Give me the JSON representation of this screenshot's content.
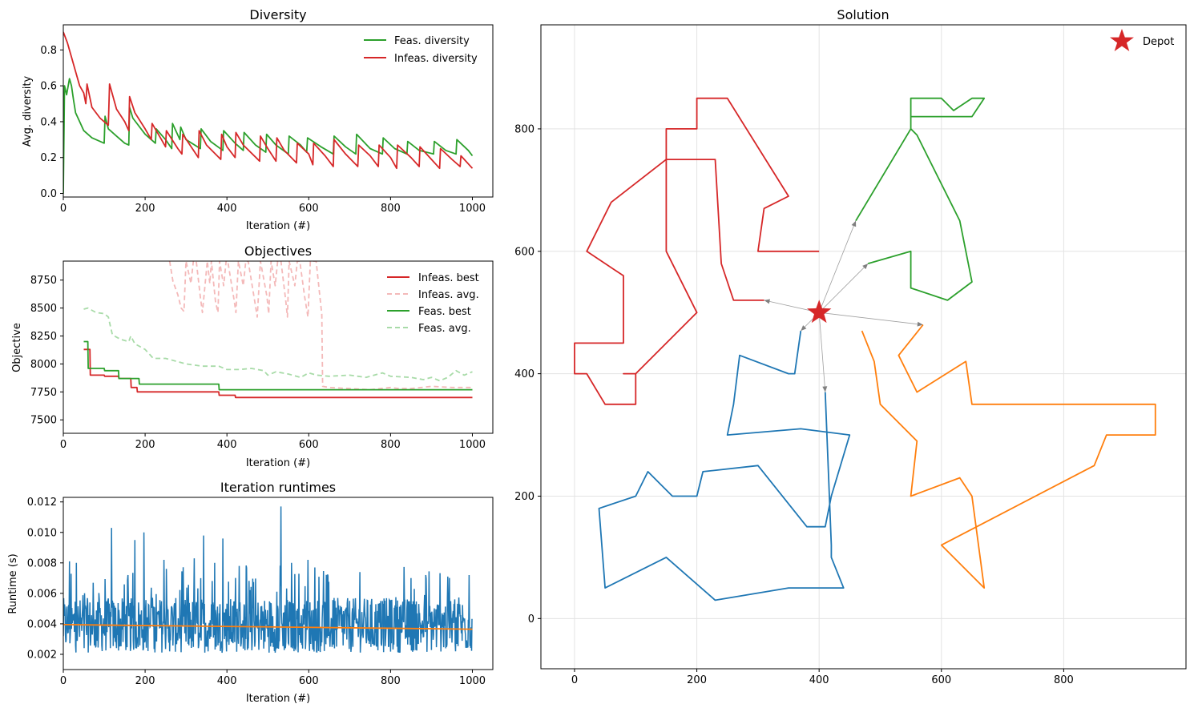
{
  "chart_data": [
    {
      "id": "diversity",
      "type": "line",
      "title": "Diversity",
      "xlabel": "Iteration (#)",
      "ylabel": "Avg. diversity",
      "xlim": [
        0,
        1050
      ],
      "ylim": [
        -0.02,
        0.94
      ],
      "xticks": [
        0,
        200,
        400,
        600,
        800,
        1000
      ],
      "yticks": [
        0.0,
        0.2,
        0.4,
        0.6,
        0.8
      ],
      "ytick_labels": [
        "0.0",
        "0.2",
        "0.4",
        "0.6",
        "0.8"
      ],
      "legend_position": "top-right",
      "series": [
        {
          "name": "Feas. diversity",
          "color": "#2ca02c",
          "x": [
            0,
            3,
            8,
            15,
            20,
            25,
            30,
            40,
            50,
            60,
            70,
            80,
            90,
            100,
            102,
            110,
            115,
            130,
            150,
            160,
            162,
            170,
            200,
            225,
            227,
            250,
            265,
            267,
            285,
            287,
            300,
            335,
            337,
            360,
            390,
            392,
            420,
            440,
            442,
            470,
            495,
            497,
            520,
            550,
            552,
            580,
            595,
            597,
            630,
            660,
            662,
            690,
            715,
            717,
            750,
            780,
            782,
            810,
            840,
            842,
            870,
            905,
            907,
            935,
            960,
            962,
            990,
            1000
          ],
          "y": [
            0.0,
            0.6,
            0.55,
            0.64,
            0.6,
            0.52,
            0.45,
            0.4,
            0.35,
            0.33,
            0.31,
            0.3,
            0.29,
            0.28,
            0.43,
            0.36,
            0.35,
            0.32,
            0.28,
            0.27,
            0.48,
            0.42,
            0.33,
            0.28,
            0.36,
            0.3,
            0.25,
            0.39,
            0.3,
            0.37,
            0.3,
            0.25,
            0.36,
            0.29,
            0.24,
            0.35,
            0.28,
            0.24,
            0.34,
            0.27,
            0.23,
            0.33,
            0.27,
            0.22,
            0.32,
            0.27,
            0.23,
            0.31,
            0.26,
            0.22,
            0.32,
            0.26,
            0.22,
            0.33,
            0.25,
            0.22,
            0.31,
            0.25,
            0.22,
            0.29,
            0.24,
            0.22,
            0.29,
            0.24,
            0.22,
            0.3,
            0.24,
            0.21
          ]
        },
        {
          "name": "Infeas. diversity",
          "color": "#d62728",
          "x": [
            0,
            10,
            20,
            30,
            40,
            50,
            55,
            58,
            70,
            90,
            110,
            113,
            130,
            150,
            160,
            162,
            175,
            200,
            215,
            217,
            240,
            250,
            252,
            280,
            290,
            292,
            330,
            332,
            350,
            385,
            387,
            400,
            420,
            422,
            440,
            480,
            482,
            500,
            520,
            522,
            540,
            570,
            572,
            600,
            610,
            612,
            640,
            660,
            662,
            690,
            720,
            722,
            750,
            770,
            772,
            800,
            815,
            817,
            850,
            870,
            872,
            900,
            920,
            922,
            950,
            970,
            972,
            1000
          ],
          "y": [
            0.9,
            0.84,
            0.76,
            0.68,
            0.6,
            0.56,
            0.5,
            0.61,
            0.48,
            0.42,
            0.38,
            0.61,
            0.47,
            0.4,
            0.35,
            0.54,
            0.45,
            0.36,
            0.3,
            0.39,
            0.3,
            0.26,
            0.35,
            0.25,
            0.22,
            0.33,
            0.2,
            0.35,
            0.27,
            0.19,
            0.33,
            0.26,
            0.2,
            0.34,
            0.27,
            0.18,
            0.32,
            0.25,
            0.18,
            0.31,
            0.24,
            0.17,
            0.28,
            0.22,
            0.16,
            0.28,
            0.21,
            0.15,
            0.3,
            0.22,
            0.15,
            0.27,
            0.21,
            0.15,
            0.27,
            0.2,
            0.14,
            0.27,
            0.2,
            0.15,
            0.26,
            0.19,
            0.14,
            0.25,
            0.19,
            0.15,
            0.21,
            0.14
          ]
        }
      ]
    },
    {
      "id": "objectives",
      "type": "line",
      "title": "Objectives",
      "xlabel": "Iteration (#)",
      "ylabel": "Objective",
      "xlim": [
        0,
        1050
      ],
      "ylim": [
        7380,
        8920
      ],
      "xticks": [
        0,
        200,
        400,
        600,
        800,
        1000
      ],
      "yticks": [
        7500,
        7750,
        8000,
        8250,
        8500,
        8750
      ],
      "legend_position": "top-right",
      "series": [
        {
          "name": "Infeas. best",
          "color": "#d62728",
          "dash": false,
          "x": [
            50,
            65,
            66,
            100,
            101,
            135,
            136,
            165,
            166,
            180,
            181,
            250,
            380,
            381,
            420,
            421,
            1000
          ],
          "y": [
            8130,
            8130,
            7900,
            7900,
            7890,
            7890,
            7870,
            7870,
            7790,
            7790,
            7750,
            7750,
            7750,
            7720,
            7720,
            7700,
            7700
          ]
        },
        {
          "name": "Infeas. avg.",
          "color": "#f4b9b9",
          "dash": true,
          "x": [
            260,
            268,
            280,
            288,
            295,
            300,
            312,
            318,
            325,
            335,
            340,
            352,
            358,
            362,
            372,
            378,
            382,
            392,
            398,
            402,
            418,
            422,
            428,
            440,
            446,
            452,
            468,
            474,
            482,
            498,
            502,
            508,
            518,
            524,
            532,
            544,
            548,
            552,
            566,
            572,
            578,
            590,
            598,
            604,
            618,
            632,
            634,
            650,
            700,
            750,
            800,
            820,
            850,
            900,
            950,
            1000
          ],
          "y": [
            8920,
            8740,
            8620,
            8500,
            8470,
            8920,
            8720,
            8920,
            8920,
            8600,
            8460,
            8920,
            8720,
            8920,
            8560,
            8460,
            8920,
            8700,
            8920,
            8920,
            8560,
            8460,
            8920,
            8700,
            8920,
            8920,
            8560,
            8420,
            8920,
            8600,
            8450,
            8920,
            8700,
            8920,
            8920,
            8560,
            8420,
            8920,
            8700,
            8920,
            8920,
            8600,
            8420,
            8920,
            8920,
            8440,
            7800,
            7790,
            7780,
            7770,
            7790,
            7780,
            7780,
            7800,
            7790,
            7790
          ]
        },
        {
          "name": "Feas. best",
          "color": "#2ca02c",
          "dash": false,
          "x": [
            50,
            60,
            61,
            100,
            101,
            135,
            136,
            185,
            186,
            380,
            381,
            1000
          ],
          "y": [
            8200,
            8200,
            7960,
            7960,
            7940,
            7940,
            7870,
            7870,
            7820,
            7820,
            7770,
            7770
          ]
        },
        {
          "name": "Feas. avg.",
          "color": "#a8dba8",
          "dash": true,
          "x": [
            50,
            60,
            80,
            100,
            110,
            115,
            120,
            140,
            160,
            165,
            175,
            200,
            220,
            250,
            280,
            300,
            340,
            380,
            400,
            430,
            460,
            490,
            500,
            520,
            550,
            580,
            600,
            620,
            650,
            700,
            740,
            780,
            800,
            850,
            880,
            900,
            920,
            940,
            960,
            980,
            1000
          ],
          "y": [
            8490,
            8500,
            8460,
            8450,
            8420,
            8340,
            8260,
            8220,
            8200,
            8250,
            8180,
            8130,
            8050,
            8050,
            8020,
            8000,
            7980,
            7980,
            7950,
            7950,
            7960,
            7940,
            7900,
            7930,
            7910,
            7880,
            7920,
            7900,
            7890,
            7900,
            7880,
            7920,
            7890,
            7880,
            7860,
            7880,
            7850,
            7880,
            7940,
            7900,
            7930
          ]
        }
      ]
    },
    {
      "id": "runtimes",
      "type": "line",
      "title": "Iteration runtimes",
      "xlabel": "Iteration (#)",
      "ylabel": "Runtime (s)",
      "xlim": [
        0,
        1050
      ],
      "ylim": [
        0.001,
        0.0123
      ],
      "xticks": [
        0,
        200,
        400,
        600,
        800,
        1000
      ],
      "yticks": [
        0.002,
        0.004,
        0.006,
        0.008,
        0.01,
        0.012
      ],
      "ytick_labels": [
        "0.002",
        "0.004",
        "0.006",
        "0.008",
        "0.010",
        "0.012"
      ],
      "series": [
        {
          "name": "",
          "color": "#1f77b4",
          "n_points": 1000,
          "base": 0.0039,
          "min": 0.0015,
          "spikes": [
            [
              15,
              0.0081
            ],
            [
              32,
              0.008
            ],
            [
              118,
              0.0103
            ],
            [
              175,
              0.0095
            ],
            [
              197,
              0.01
            ],
            [
              246,
              0.0082
            ],
            [
              320,
              0.0083
            ],
            [
              343,
              0.0098
            ],
            [
              370,
              0.008
            ],
            [
              390,
              0.0096
            ],
            [
              430,
              0.0078
            ],
            [
              532,
              0.0117
            ],
            [
              558,
              0.008
            ],
            [
              598,
              0.0082
            ],
            [
              615,
              0.0077
            ],
            [
              725,
              0.0074
            ],
            [
              850,
              0.007
            ],
            [
              940,
              0.0071
            ],
            [
              992,
              0.0072
            ]
          ]
        },
        {
          "name": "",
          "color": "#ff7f0e",
          "x": [
            0,
            1000
          ],
          "y": [
            0.00395,
            0.00365
          ]
        }
      ]
    },
    {
      "id": "solution",
      "type": "line",
      "title": "Solution",
      "xlim": [
        -55,
        1000
      ],
      "ylim": [
        -82,
        970
      ],
      "xticks": [
        0,
        200,
        400,
        600,
        800
      ],
      "yticks": [
        0,
        200,
        400,
        600,
        800
      ],
      "grid": true,
      "legend_position": "top-right",
      "depot": {
        "x": 400,
        "y": 500,
        "name": "Depot",
        "color": "#d62728"
      },
      "series": [
        {
          "name": "",
          "color": "#1f77b4",
          "x": [
            370,
            360,
            350,
            270,
            260,
            250,
            370,
            450,
            420,
            410,
            380,
            300,
            210,
            200,
            160,
            120,
            100,
            40,
            50,
            150,
            230,
            350,
            440,
            420,
            420,
            410
          ],
          "y": [
            470,
            400,
            400,
            430,
            350,
            300,
            310,
            300,
            200,
            150,
            150,
            250,
            240,
            200,
            200,
            240,
            200,
            180,
            50,
            100,
            30,
            50,
            50,
            100,
            120,
            370
          ]
        },
        {
          "name": "",
          "color": "#ff7f0e",
          "x": [
            470,
            490,
            500,
            560,
            550,
            630,
            650,
            670,
            600,
            850,
            870,
            950,
            950,
            650,
            640,
            560,
            530,
            570
          ],
          "y": [
            470,
            420,
            350,
            290,
            200,
            230,
            200,
            50,
            120,
            250,
            300,
            300,
            350,
            350,
            420,
            370,
            430,
            480
          ]
        },
        {
          "name": "",
          "color": "#2ca02c",
          "x": [
            460,
            550,
            550,
            600,
            620,
            650,
            670,
            650,
            550,
            550,
            560,
            580,
            630,
            650,
            610,
            550,
            550,
            480
          ],
          "y": [
            650,
            800,
            850,
            850,
            830,
            850,
            850,
            820,
            820,
            800,
            790,
            750,
            650,
            550,
            520,
            540,
            600,
            580
          ]
        },
        {
          "name": "",
          "color": "#d62728",
          "x": [
            400,
            300,
            310,
            350,
            250,
            200,
            200,
            150,
            150,
            60,
            20,
            80,
            80,
            0,
            0,
            20,
            50,
            100,
            100,
            80,
            100,
            200,
            150,
            150,
            230,
            240,
            260,
            300,
            310
          ],
          "y": [
            600,
            600,
            670,
            690,
            850,
            850,
            800,
            800,
            750,
            680,
            600,
            560,
            450,
            450,
            400,
            400,
            350,
            350,
            400,
            400,
            400,
            500,
            600,
            750,
            750,
            580,
            520,
            520,
            520
          ]
        }
      ],
      "depot_arrows": [
        [
          310,
          520
        ],
        [
          370,
          470
        ],
        [
          410,
          370
        ],
        [
          460,
          650
        ],
        [
          480,
          580
        ],
        [
          570,
          480
        ]
      ]
    }
  ]
}
